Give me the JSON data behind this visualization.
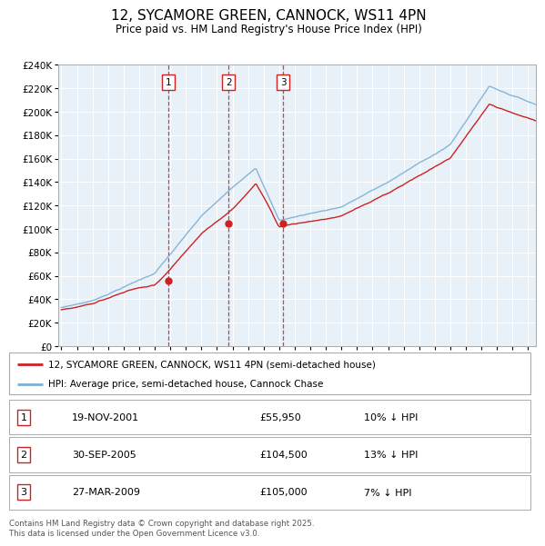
{
  "title": "12, SYCAMORE GREEN, CANNOCK, WS11 4PN",
  "subtitle": "Price paid vs. HM Land Registry's House Price Index (HPI)",
  "background_color": "#e8f0f8",
  "plot_bg_color": "#e8f0f8",
  "ylim": [
    0,
    240000
  ],
  "ytick_step": 20000,
  "legend_line1": "12, SYCAMORE GREEN, CANNOCK, WS11 4PN (semi-detached house)",
  "legend_line2": "HPI: Average price, semi-detached house, Cannock Chase",
  "sale_markers": [
    {
      "label": "1",
      "date": "19-NOV-2001",
      "price": 55950,
      "price_str": "£55,950",
      "pct": "10%",
      "dir": "↓",
      "x": 2001.89
    },
    {
      "label": "2",
      "date": "30-SEP-2005",
      "price": 104500,
      "price_str": "£104,500",
      "pct": "13%",
      "dir": "↓",
      "x": 2005.75
    },
    {
      "label": "3",
      "date": "27-MAR-2009",
      "price": 105000,
      "price_str": "£105,000",
      "pct": "7%",
      "dir": "↓",
      "x": 2009.25
    }
  ],
  "footer": "Contains HM Land Registry data © Crown copyright and database right 2025.\nThis data is licensed under the Open Government Licence v3.0.",
  "hpi_color": "#7bafd4",
  "price_color": "#cc2222",
  "marker_box_color": "#cc2222",
  "xmin": 1995,
  "xmax": 2025.5
}
